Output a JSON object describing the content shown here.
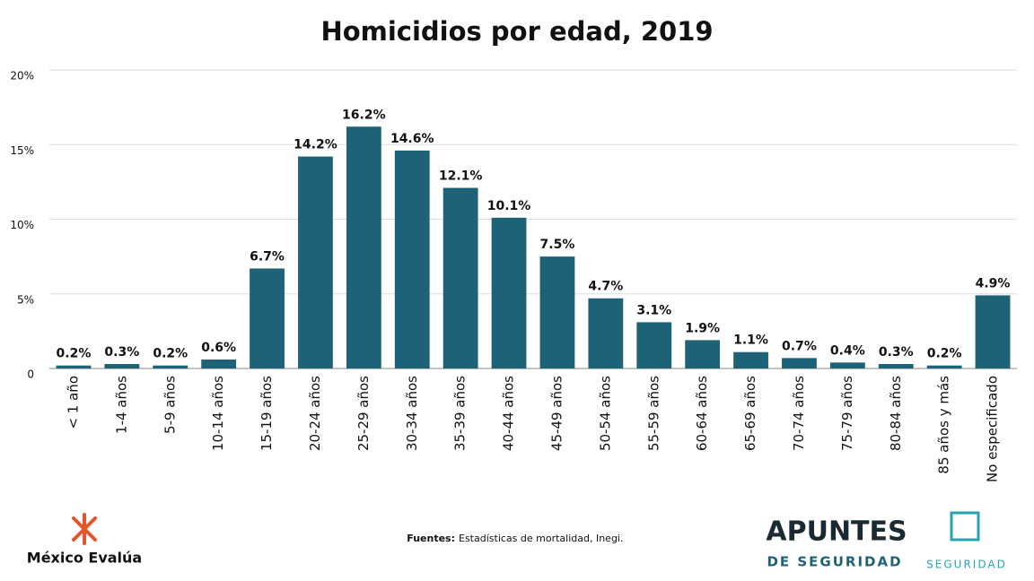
{
  "chart_data": {
    "type": "bar",
    "title": "Homicidios por edad, 2019",
    "categories": [
      "< 1 año",
      "1-4 años",
      "5-9 años",
      "10-14 años",
      "15-19 años",
      "20-24 años",
      "25-29 años",
      "30-34 años",
      "35-39 años",
      "40-44 años",
      "45-49 años",
      "50-54 años",
      "55-59 años",
      "60-64 años",
      "65-69 años",
      "70-74 años",
      "75-79 años",
      "80-84 años",
      "85 años y más",
      "No especificado"
    ],
    "values": [
      0.2,
      0.3,
      0.2,
      0.6,
      6.7,
      14.2,
      16.2,
      14.6,
      12.1,
      10.1,
      7.5,
      4.7,
      3.1,
      1.9,
      1.1,
      0.7,
      0.4,
      0.3,
      0.2,
      4.9
    ],
    "value_labels": [
      "0.2%",
      "0.3%",
      "0.2%",
      "0.6%",
      "6.7%",
      "14.2%",
      "16.2%",
      "14.6%",
      "12.1%",
      "10.1%",
      "7.5%",
      "4.7%",
      "3.1%",
      "1.9%",
      "1.1%",
      "0.7%",
      "0.4%",
      "0.3%",
      "0.2%",
      "4.9%"
    ],
    "color": "#1e6278",
    "ylim": [
      0,
      20
    ],
    "yticks": [
      0,
      {
        "value": 5,
        "label": "5%"
      },
      {
        "value": 10,
        "label": "10%"
      },
      {
        "value": 15,
        "label": "15%"
      },
      {
        "value": 20,
        "label": "20%"
      }
    ],
    "grid": true
  },
  "footer": {
    "brand": "México Evalúa",
    "source_label": "Fuentes:",
    "source_text": "Estadísticas de mortalidad, Inegi.",
    "logo_top": "APUNTES",
    "logo_bottom": "DE SEGURIDAD",
    "logo_right": "SEGURIDAD"
  }
}
